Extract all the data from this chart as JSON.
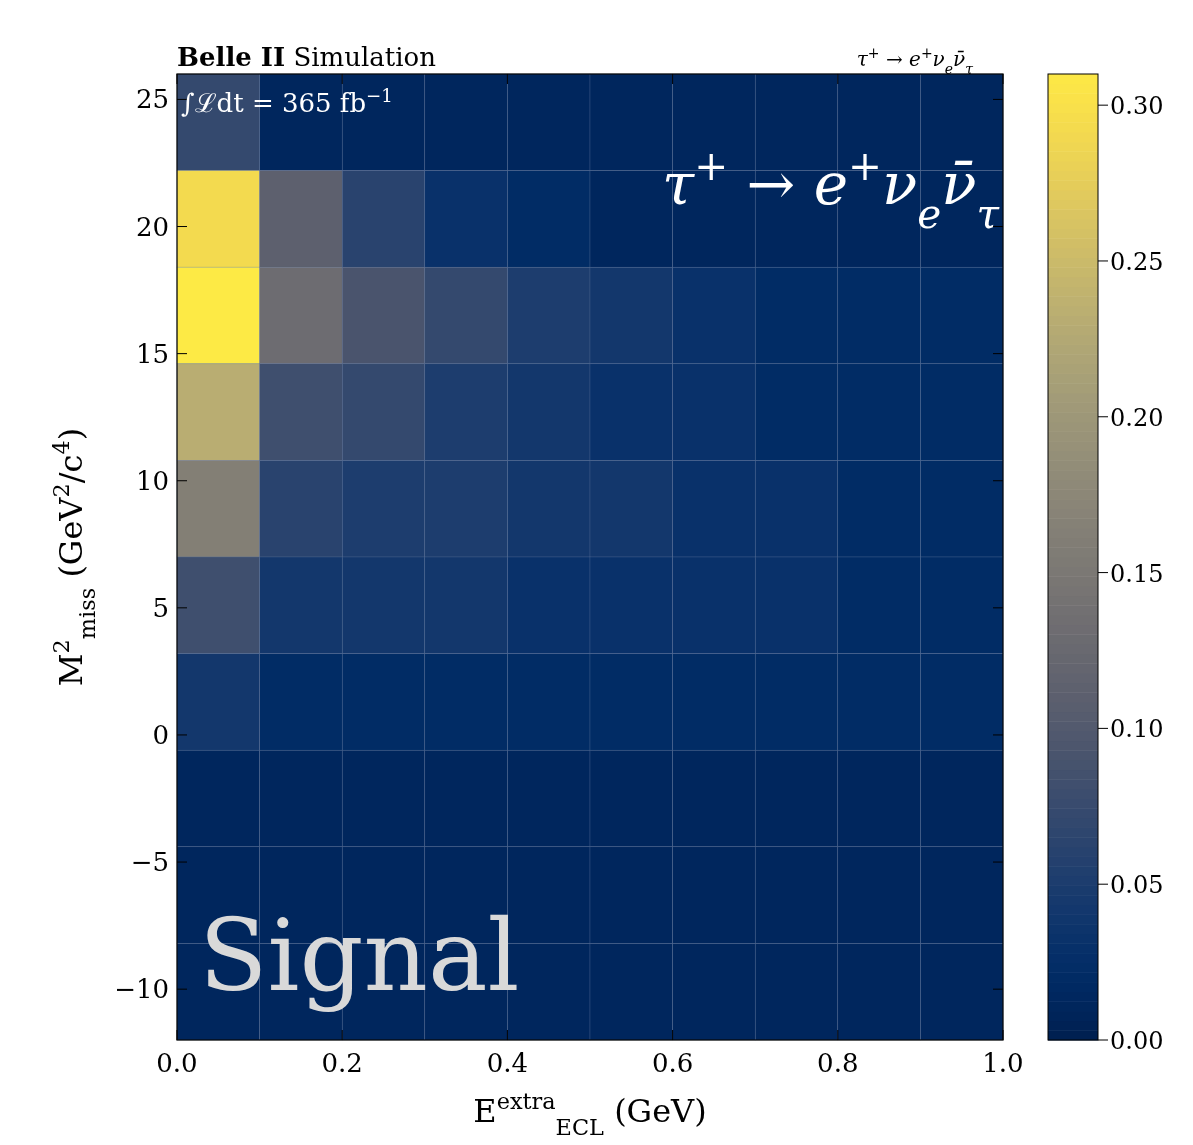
{
  "chart_data": {
    "type": "heatmap",
    "title": "Belle II Simulation",
    "xlabel": "E$^{extra}$$_{ECL}$ (GeV)",
    "ylabel": "M$^{2}$$_{miss}$ (GeV$^{2}$/c$^{4}$)",
    "xlim": [
      0,
      1
    ],
    "xticks": [
      {
        "value": 0,
        "label": "0.0"
      },
      {
        "value": 0.2,
        "label": "0.2"
      },
      {
        "value": 0.4,
        "label": "0.4"
      },
      {
        "value": 0.6,
        "label": "0.6"
      },
      {
        "value": 0.8,
        "label": "0.8"
      },
      {
        "value": 1,
        "label": "1.0"
      }
    ],
    "ylim": [
      -12,
      26
    ],
    "yticks": [
      {
        "value": -10,
        "label": "−10"
      },
      {
        "value": -5,
        "label": "−5"
      },
      0,
      5,
      10,
      15,
      20,
      25
    ],
    "cells": [
      [
        0.07,
        0.01,
        0.01,
        0.01,
        0.01,
        0.01,
        0.01,
        0.01,
        0.01,
        0.01
      ],
      [
        0.29,
        0.11,
        0.06,
        0.03,
        0.02,
        0.01,
        0.01,
        0.01,
        0.01,
        0.01
      ],
      [
        0.31,
        0.13,
        0.09,
        0.07,
        0.05,
        0.04,
        0.03,
        0.02,
        0.02,
        0.02
      ],
      [
        0.23,
        0.08,
        0.07,
        0.05,
        0.04,
        0.03,
        0.03,
        0.02,
        0.02,
        0.02
      ],
      [
        0.16,
        0.06,
        0.05,
        0.05,
        0.04,
        0.04,
        0.03,
        0.03,
        0.02,
        0.02
      ],
      [
        0.08,
        0.04,
        0.04,
        0.04,
        0.03,
        0.03,
        0.03,
        0.03,
        0.02,
        0.02
      ],
      [
        0.04,
        0.02,
        0.02,
        0.02,
        0.02,
        0.02,
        0.02,
        0.02,
        0.02,
        0.02
      ],
      [
        0.01,
        0.01,
        0.01,
        0.01,
        0.01,
        0.01,
        0.01,
        0.01,
        0.01,
        0.01
      ],
      [
        0.01,
        0.01,
        0.01,
        0.01,
        0.01,
        0.01,
        0.01,
        0.01,
        0.01,
        0.01
      ],
      [
        0.01,
        0.01,
        0.01,
        0.01,
        0.01,
        0.01,
        0.01,
        0.01,
        0.01,
        0.01
      ]
    ],
    "clim": [
      0,
      0.31
    ],
    "cticks": [
      {
        "value": 0,
        "label": "0.00"
      },
      0.05,
      {
        "value": 0.1,
        "label": "0.10"
      },
      0.15,
      {
        "value": 0.2,
        "label": "0.20"
      },
      0.25,
      {
        "value": 0.3,
        "label": "0.30"
      }
    ],
    "annotations": [
      "∫ℒdt = 365 fb$^{−1}$",
      "τ$^{+}$ → e$^{+}$ν$_{e}$ν̄$_{τ}$",
      "Signal",
      "τ$^{+}$ → e$^{+}$ν$_{e}$ν̄$_{τ}$"
    ]
  }
}
